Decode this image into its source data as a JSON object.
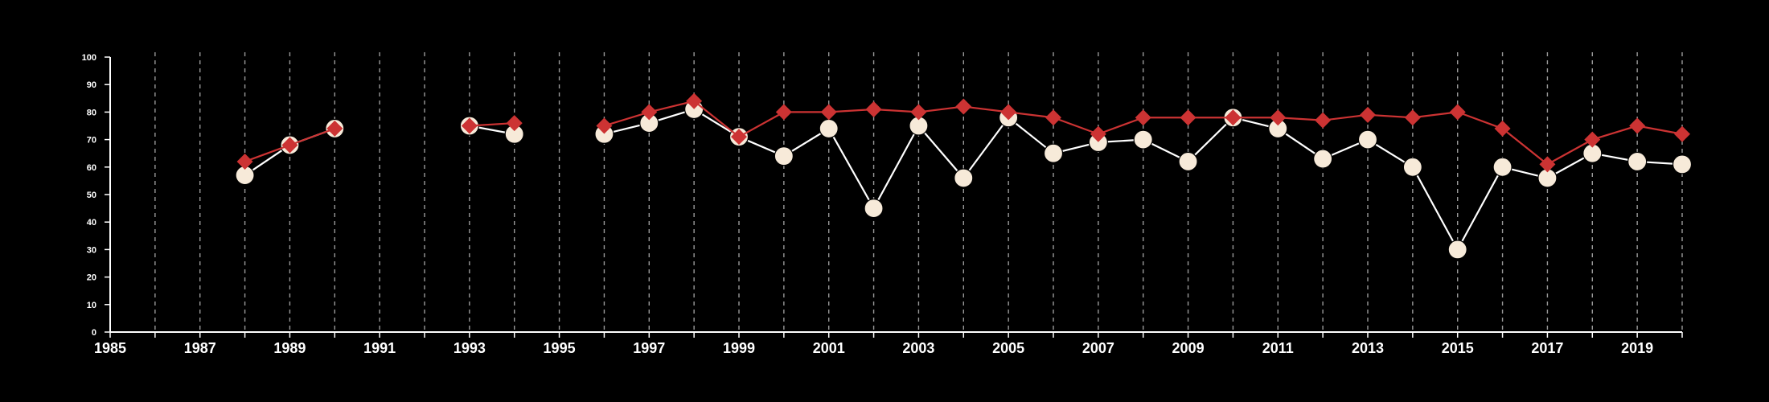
{
  "chart_data": {
    "type": "line",
    "title": "",
    "xlabel": "",
    "ylabel": "",
    "xlim": [
      1985,
      2020
    ],
    "ylim": [
      0,
      100
    ],
    "y_ticks": [
      0,
      10,
      20,
      30,
      40,
      50,
      60,
      70,
      80,
      90,
      100
    ],
    "x_ticks": [
      1985,
      1986,
      1987,
      1988,
      1989,
      1990,
      1991,
      1992,
      1993,
      1994,
      1995,
      1996,
      1997,
      1998,
      1999,
      2000,
      2001,
      2002,
      2003,
      2004,
      2005,
      2006,
      2007,
      2008,
      2009,
      2010,
      2011,
      2012,
      2013,
      2014,
      2015,
      2016,
      2017,
      2018,
      2019,
      2020
    ],
    "x_tick_labels": [
      "1985",
      "1987",
      "1989",
      "1991",
      "1993",
      "1995",
      "1997",
      "1999",
      "2001",
      "2003",
      "2005",
      "2007",
      "2009",
      "2011",
      "2013",
      "2015",
      "2017",
      "2019"
    ],
    "grid": "vertical dashed",
    "background": "#000000",
    "x": [
      1988,
      1989,
      1990,
      1993,
      1994,
      1996,
      1997,
      1998,
      1999,
      2000,
      2001,
      2002,
      2003,
      2004,
      2005,
      2006,
      2007,
      2008,
      2009,
      2010,
      2011,
      2012,
      2013,
      2014,
      2015,
      2016,
      2017,
      2018,
      2019,
      2020
    ],
    "series": [
      {
        "color": "#f7ead9",
        "line_color": "#ffffff",
        "marker": "circle",
        "values": [
          57,
          68,
          74,
          75,
          72,
          72,
          76,
          81,
          71,
          64,
          74,
          45,
          75,
          56,
          78,
          65,
          69,
          70,
          62,
          78,
          74,
          63,
          70,
          60,
          30,
          60,
          56,
          65,
          62,
          61
        ]
      },
      {
        "color": "#cc3333",
        "line_color": "#cc3333",
        "marker": "diamond",
        "values": [
          62,
          68,
          74,
          75,
          76,
          75,
          80,
          84,
          71,
          80,
          80,
          81,
          80,
          82,
          80,
          78,
          72,
          78,
          78,
          78,
          78,
          77,
          79,
          78,
          80,
          74,
          61,
          70,
          75,
          72
        ]
      }
    ]
  }
}
